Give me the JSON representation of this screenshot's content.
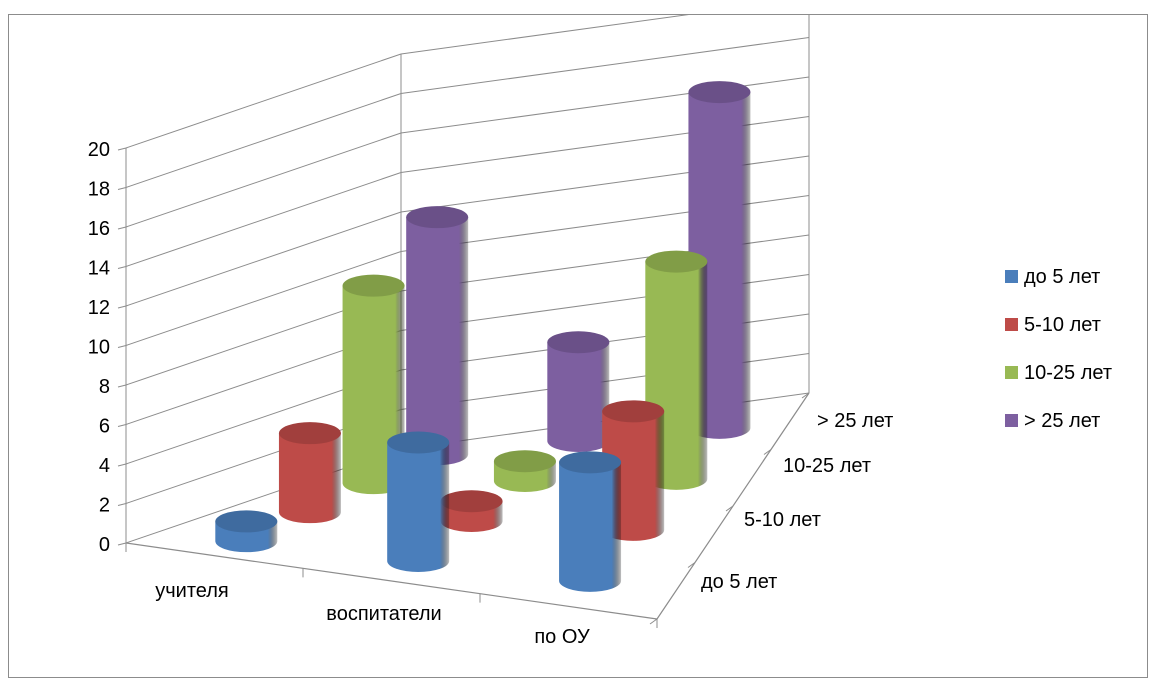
{
  "chart_data": {
    "type": "bar",
    "subtype": "3d-cylinder",
    "title": "",
    "categories": [
      "учителя",
      "воспитатели",
      "по ОУ"
    ],
    "depth_categories": [
      "до 5 лет",
      "5-10 лет",
      "10-25 лет",
      "> 25 лет"
    ],
    "series": [
      {
        "name": "до 5 лет",
        "values": [
          1,
          6,
          6
        ]
      },
      {
        "name": "5-10 лет",
        "values": [
          4,
          1,
          6
        ]
      },
      {
        "name": "10-25 лет",
        "values": [
          10,
          1,
          11
        ]
      },
      {
        "name": "> 25 лет",
        "values": [
          12,
          5,
          17
        ]
      }
    ],
    "y_ticks": [
      "0",
      "2",
      "4",
      "6",
      "8",
      "10",
      "12",
      "14",
      "16",
      "18",
      "20"
    ],
    "ylim": [
      0,
      20
    ],
    "grid": true,
    "legend_position": "right"
  },
  "colors": {
    "до 5 лет": "#4a7ebb",
    "5-10 лет": "#be4b48",
    "10-25 лет": "#98b954",
    "> 25 лет": "#7d5fa0",
    "grid": "#8c8c8c"
  }
}
